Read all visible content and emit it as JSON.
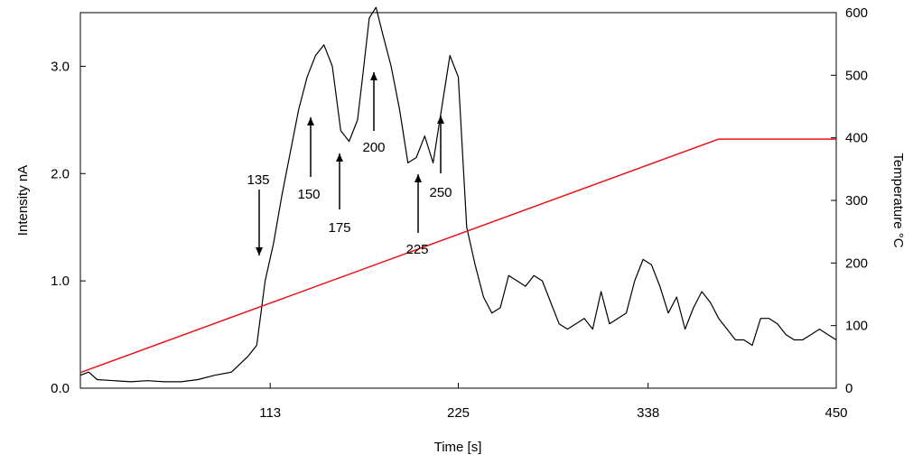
{
  "chart_data": {
    "type": "line",
    "title": "",
    "xlabel": "Time [s]",
    "ylabel_left": "Intensity nA",
    "ylabel_right": "Temperature °C",
    "xlim": [
      0,
      450
    ],
    "ylim_left": [
      0,
      3.5
    ],
    "ylim_right": [
      0,
      600
    ],
    "x_ticks": [
      113,
      225,
      338,
      450
    ],
    "x_tick_labels": [
      "113",
      "225",
      "338",
      "450"
    ],
    "y_left_ticks": [
      0,
      1,
      2,
      3
    ],
    "y_left_tick_labels": [
      "0.0",
      "1.0",
      "2.0",
      "3.0"
    ],
    "y_right_ticks": [
      0,
      100,
      200,
      300,
      400,
      500,
      600
    ],
    "y_right_tick_labels": [
      "0",
      "100",
      "200",
      "300",
      "400",
      "500",
      "600"
    ],
    "grid": false,
    "series": [
      {
        "axis": "left",
        "color": "#000000",
        "x": [
          0,
          5,
          10,
          20,
          30,
          40,
          50,
          60,
          70,
          80,
          90,
          100,
          105,
          110,
          115,
          120,
          125,
          130,
          135,
          140,
          145,
          150,
          155,
          160,
          165,
          168,
          172,
          176,
          180,
          185,
          190,
          195,
          200,
          205,
          210,
          215,
          220,
          225,
          230,
          235,
          240,
          245,
          250,
          255,
          260,
          265,
          270,
          275,
          280,
          285,
          290,
          295,
          300,
          305,
          310,
          315,
          320,
          325,
          330,
          335,
          340,
          345,
          350,
          355,
          360,
          365,
          370,
          375,
          380,
          385,
          390,
          395,
          400,
          405,
          410,
          415,
          420,
          425,
          430,
          435,
          440,
          445,
          450
        ],
        "y": [
          0.12,
          0.15,
          0.08,
          0.07,
          0.06,
          0.07,
          0.06,
          0.06,
          0.08,
          0.12,
          0.15,
          0.3,
          0.4,
          1.0,
          1.35,
          1.8,
          2.2,
          2.6,
          2.9,
          3.1,
          3.2,
          3.0,
          2.4,
          2.3,
          2.5,
          2.9,
          3.45,
          3.55,
          3.3,
          3.0,
          2.6,
          2.1,
          2.15,
          2.35,
          2.1,
          2.6,
          3.1,
          2.9,
          1.5,
          1.15,
          0.85,
          0.7,
          0.75,
          1.05,
          1.0,
          0.95,
          1.05,
          1.0,
          0.8,
          0.6,
          0.55,
          0.6,
          0.65,
          0.55,
          0.9,
          0.6,
          0.65,
          0.7,
          1.0,
          1.2,
          1.15,
          0.95,
          0.7,
          0.85,
          0.55,
          0.75,
          0.9,
          0.8,
          0.65,
          0.55,
          0.45,
          0.45,
          0.4,
          0.65,
          0.65,
          0.6,
          0.5,
          0.45,
          0.45,
          0.5,
          0.55,
          0.5,
          0.45
        ]
      },
      {
        "axis": "right",
        "color": "#e8141a",
        "x": [
          0,
          380,
          450
        ],
        "y": [
          25,
          398,
          398
        ]
      }
    ],
    "annotations": [
      {
        "label": "135",
        "x": 135
      },
      {
        "label": "150",
        "x": 150
      },
      {
        "label": "175",
        "x": 175
      },
      {
        "label": "200",
        "x": 200
      },
      {
        "label": "225",
        "x": 225
      },
      {
        "label": "250",
        "x": 250
      }
    ]
  }
}
